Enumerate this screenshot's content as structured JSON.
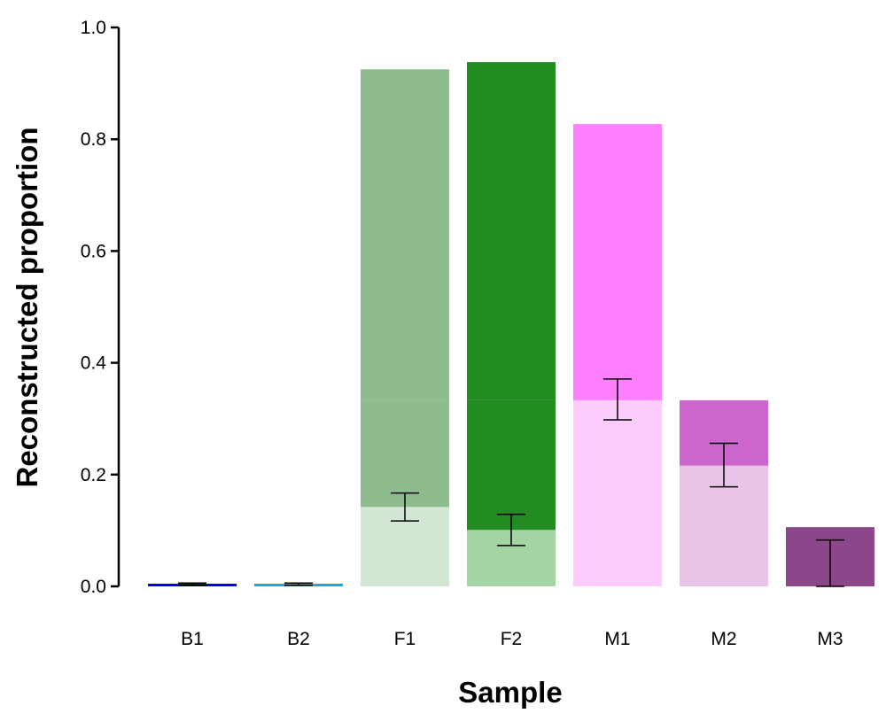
{
  "chart_data": {
    "type": "bar",
    "xlabel": "Sample",
    "ylabel": "Reconstructed proportion",
    "ylim": [
      0,
      1.0
    ],
    "yticks": [
      "0.0",
      "0.2",
      "0.4",
      "0.6",
      "0.8",
      "1.0"
    ],
    "grid": false,
    "legend": "none",
    "categories": [
      "B1",
      "B2",
      "F1",
      "F2",
      "M1",
      "M2",
      "M3"
    ],
    "bars": [
      {
        "category": "B1",
        "segments": [
          {
            "from": 0,
            "to": 0.004,
            "color": "#0000EE"
          }
        ],
        "error": {
          "low": 0.002,
          "high": 0.006
        }
      },
      {
        "category": "B2",
        "segments": [
          {
            "from": 0,
            "to": 0.004,
            "color": "#1AA7E6"
          }
        ],
        "error": {
          "low": 0.002,
          "high": 0.006
        }
      },
      {
        "category": "F1",
        "segments": [
          {
            "from": 0,
            "to": 0.142,
            "color": "#D3E6D3"
          },
          {
            "from": 0.142,
            "to": 0.333,
            "color": "#8FBC8F"
          },
          {
            "from": 0.333,
            "to": 0.925,
            "color": "#8FBC8F"
          }
        ],
        "error": {
          "low": 0.117,
          "high": 0.167
        }
      },
      {
        "category": "F2",
        "segments": [
          {
            "from": 0,
            "to": 0.101,
            "color": "#A4D3A4"
          },
          {
            "from": 0.101,
            "to": 0.333,
            "color": "#228B22"
          },
          {
            "from": 0.333,
            "to": 0.938,
            "color": "#228B22"
          }
        ],
        "error": {
          "low": 0.073,
          "high": 0.129
        }
      },
      {
        "category": "M1",
        "segments": [
          {
            "from": 0,
            "to": 0.333,
            "color": "#FDCCFD"
          },
          {
            "from": 0.333,
            "to": 0.827,
            "color": "#FF80FF"
          }
        ],
        "error": {
          "low": 0.298,
          "high": 0.371
        }
      },
      {
        "category": "M2",
        "segments": [
          {
            "from": 0,
            "to": 0.216,
            "color": "#E8C4E8"
          },
          {
            "from": 0.216,
            "to": 0.333,
            "color": "#CC66CC"
          }
        ],
        "error": {
          "low": 0.178,
          "high": 0.256
        }
      },
      {
        "category": "M3",
        "segments": [
          {
            "from": 0,
            "to": 0.106,
            "color": "#8B4789"
          }
        ],
        "error": {
          "low": 0.0,
          "high": 0.083
        }
      }
    ]
  }
}
